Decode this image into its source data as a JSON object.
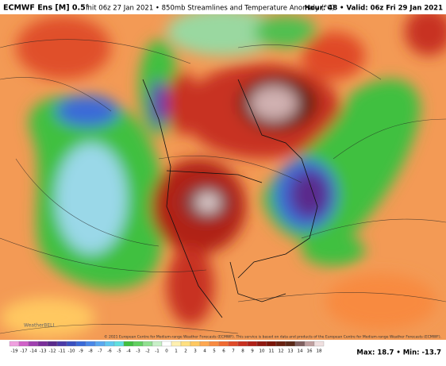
{
  "header": {
    "model": "ECMWF Ens [M] 0.5°",
    "description": "Init 06z 27 Jan 2021 • 850mb Streamlines and Temperature Anomaly (°C)",
    "valid": "Hour: 48 • Valid: 06z Fri 29 Jan 2021"
  },
  "map": {
    "credit": "© 2021 European Centre for Medium-range Weather Forecasts (ECMWF). This service is based on data and products of the European Centre for Medium-range Weather Forecasts (ECMWF).",
    "logo": "WeatherBELL"
  },
  "colorbar": {
    "labels": [
      -19,
      -17,
      -14,
      -13,
      -12,
      -11,
      -10,
      -9,
      -8,
      -7,
      -6,
      -5,
      -4,
      -3,
      -2,
      -1,
      0,
      1,
      2,
      3,
      4,
      5,
      6,
      7,
      8,
      9,
      10,
      11,
      12,
      13,
      14,
      16,
      18
    ],
    "colors": [
      "#f0a0e0",
      "#d060c8",
      "#a040b0",
      "#7a2e9a",
      "#5a2a8c",
      "#4a3aa8",
      "#3a50c0",
      "#3a6ad8",
      "#4a88e8",
      "#5aa8f0",
      "#60c8f0",
      "#60e0e0",
      "#40c040",
      "#60d060",
      "#90e090",
      "#c8f0c8",
      "#ffffff",
      "#fff0b0",
      "#ffe080",
      "#ffc860",
      "#ffa850",
      "#f88a40",
      "#f06a30",
      "#e04a28",
      "#c83020",
      "#b02018",
      "#901810",
      "#7a1408",
      "#682010",
      "#5a2818",
      "#806060",
      "#c0a0a0",
      "#f0e0e0"
    ]
  },
  "stats": "Max: 18.7 • Min: -13.7"
}
